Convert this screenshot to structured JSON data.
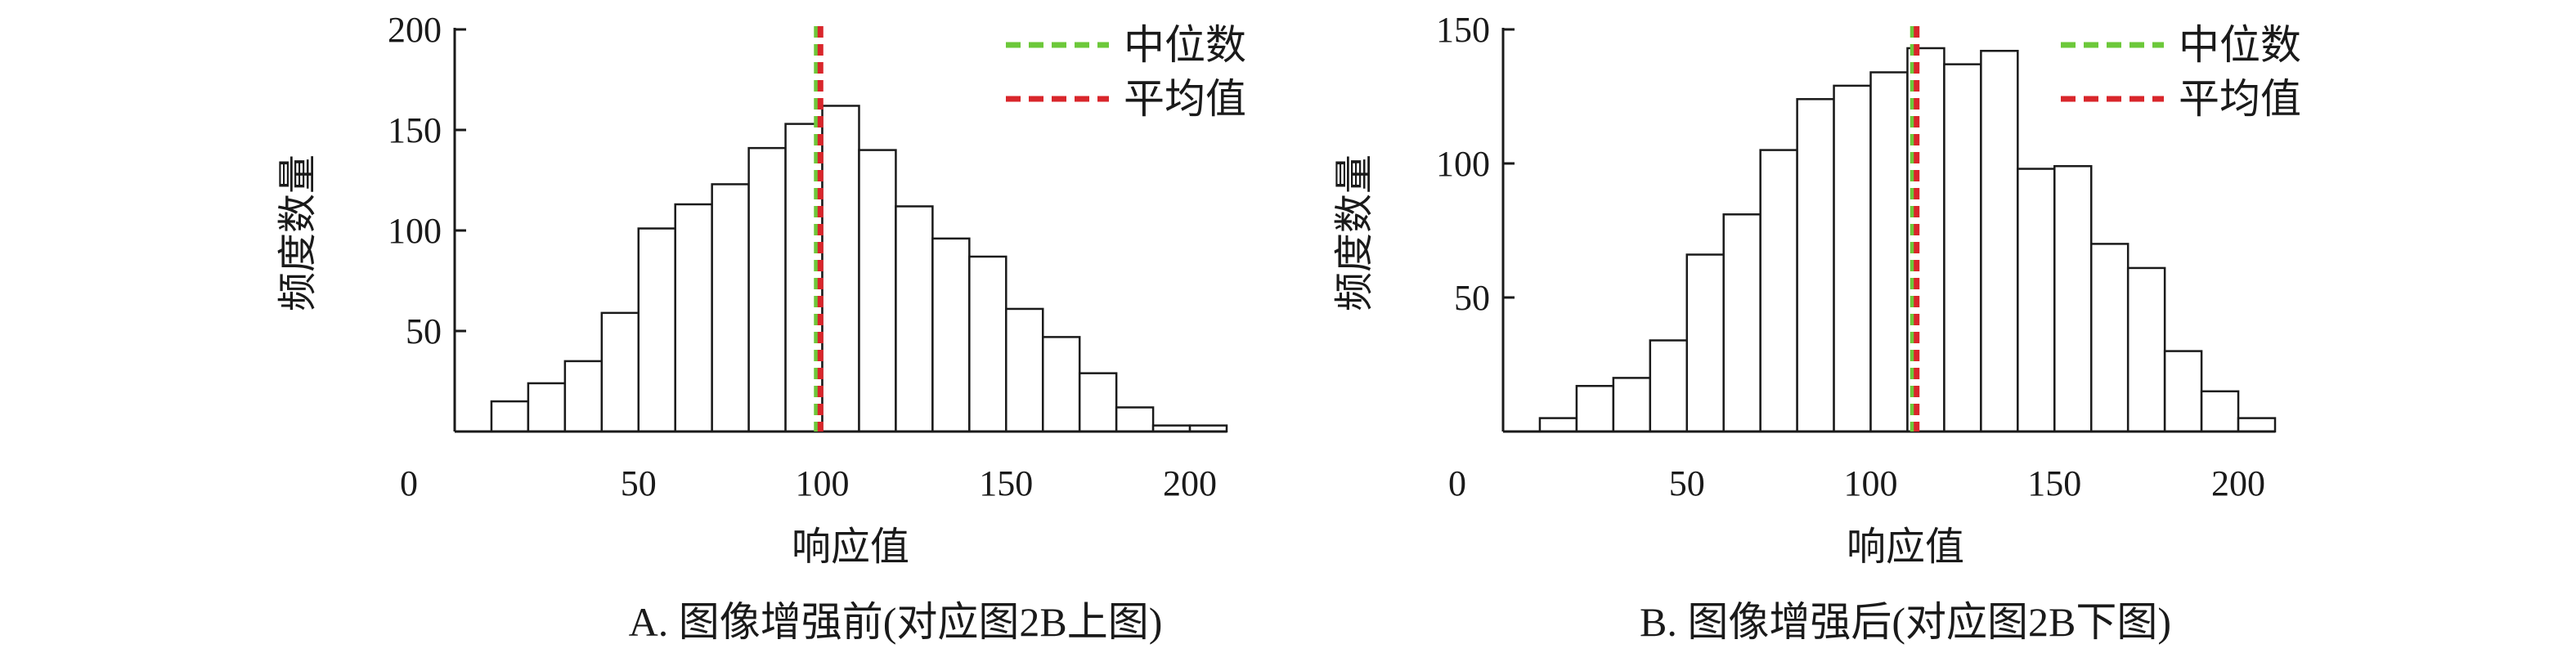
{
  "chart_data": [
    {
      "type": "bar",
      "caption": "A. 图像增强前(对应图2B上图)",
      "xlabel": "响应值",
      "ylabel": "频度数量",
      "xlim": [
        0,
        210
      ],
      "ylim": [
        0,
        200
      ],
      "xticks": [
        50,
        100,
        150,
        200
      ],
      "yticks": [
        50,
        100,
        150,
        200
      ],
      "y_origin_label": "0",
      "bin_start": 10,
      "bin_width": 10,
      "values": [
        15,
        24,
        35,
        59,
        101,
        113,
        123,
        141,
        153,
        162,
        140,
        112,
        96,
        87,
        61,
        47,
        29,
        12,
        3,
        3
      ],
      "median": 98.5,
      "mean": 99.5,
      "legend": [
        {
          "label": "中位数",
          "color": "#6cc83a"
        },
        {
          "label": "平均值",
          "color": "#d9262b"
        }
      ],
      "legend_placement": "top-right"
    },
    {
      "type": "bar",
      "caption": "B. 图像增强后(对应图2B下图)",
      "xlabel": "响应值",
      "ylabel": "频度数量",
      "xlim": [
        0,
        210
      ],
      "ylim": [
        0,
        150
      ],
      "xticks": [
        50,
        100,
        150,
        200
      ],
      "yticks": [
        50,
        100,
        150
      ],
      "y_origin_label": "0",
      "bin_start": 10,
      "bin_width": 10,
      "values": [
        5,
        17,
        20,
        34,
        66,
        81,
        105,
        124,
        129,
        134,
        143,
        137,
        142,
        98,
        99,
        70,
        61,
        30,
        15,
        5
      ],
      "median": 111.5,
      "mean": 112.5,
      "legend": [
        {
          "label": "中位数",
          "color": "#6cc83a"
        },
        {
          "label": "平均值",
          "color": "#d9262b"
        }
      ],
      "legend_placement": "top-right"
    }
  ]
}
